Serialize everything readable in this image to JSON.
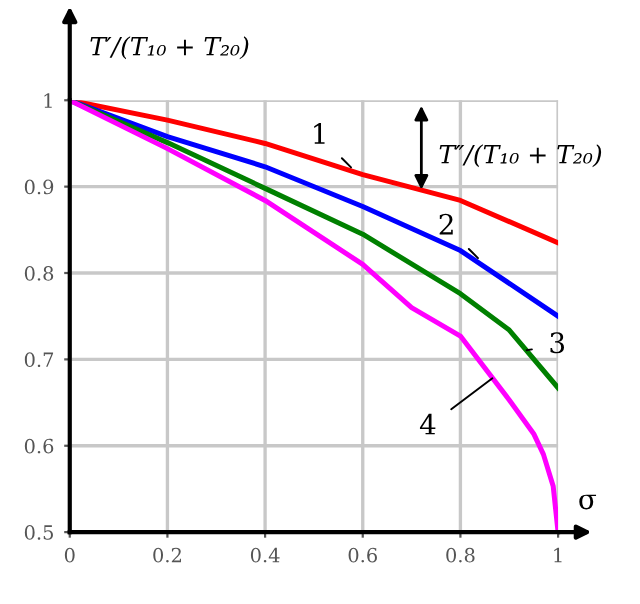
{
  "chart_data": {
    "type": "line",
    "xlabel": "σ",
    "ylabel": "T′/(T₁₀ + T₂₀)",
    "xlim": [
      0,
      1
    ],
    "ylim": [
      0.5,
      1
    ],
    "xticks": [
      0,
      0.2,
      0.4,
      0.6,
      0.8,
      1
    ],
    "yticks": [
      0.5,
      0.6,
      0.7,
      0.8,
      0.9,
      1
    ],
    "grid": true,
    "marker": "none",
    "line_style": "solid",
    "series": [
      {
        "color": "#ff0000",
        "x": [
          0,
          0.2,
          0.4,
          0.6,
          0.8,
          1
        ],
        "values": [
          1,
          0.977,
          0.95,
          0.914,
          0.884,
          0.835
        ]
      },
      {
        "color": "#0000ff",
        "x": [
          0,
          0.2,
          0.4,
          0.6,
          0.8,
          1
        ],
        "values": [
          1,
          0.958,
          0.923,
          0.877,
          0.826,
          0.75
        ]
      },
      {
        "color": "#008000",
        "x": [
          0,
          0.2,
          0.4,
          0.6,
          0.8,
          0.9,
          1
        ],
        "values": [
          1,
          0.951,
          0.898,
          0.845,
          0.776,
          0.734,
          0.667
        ]
      },
      {
        "color": "#ff00ff",
        "x": [
          0,
          0.2,
          0.4,
          0.6,
          0.7,
          0.8,
          0.9,
          0.95,
          0.97,
          0.99,
          1
        ],
        "values": [
          1,
          0.944,
          0.884,
          0.81,
          0.76,
          0.727,
          0.653,
          0.614,
          0.59,
          0.553,
          0.5
        ]
      }
    ],
    "annotations": [
      {
        "text": "1",
        "x": 0.58,
        "y": 0.92
      },
      {
        "text": "2",
        "x": 0.84,
        "y": 0.815
      },
      {
        "text": "3",
        "x": 0.93,
        "y": 0.71
      },
      {
        "text": "4",
        "x": 0.87,
        "y": 0.68
      },
      {
        "text": "T″/(T₁₀ + T₂₀)",
        "x": 0.72,
        "y": 0.89
      }
    ]
  }
}
